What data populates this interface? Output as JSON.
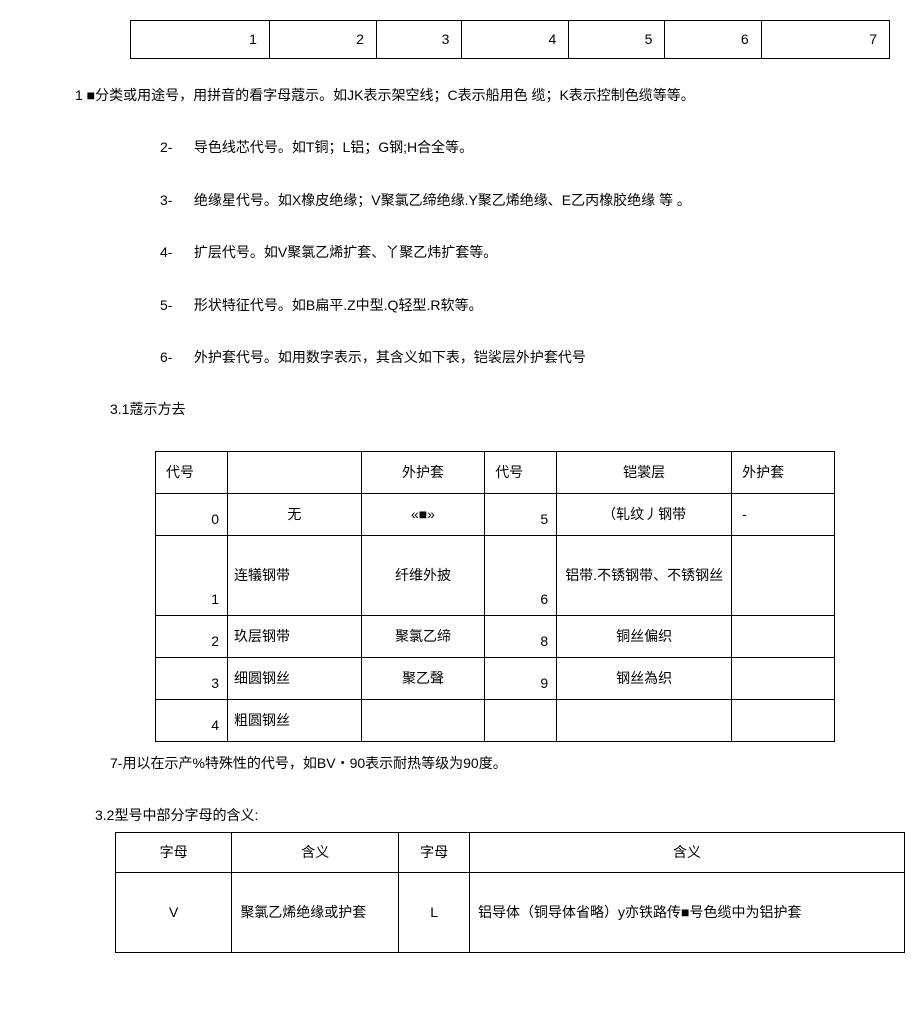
{
  "table1": {
    "cells": [
      "1",
      "2",
      "3",
      "4",
      "5",
      "6",
      "7"
    ]
  },
  "intro": "1 ■分类或用途号，用拼音的看字母蔻示。如JK表示架空线；C表示船用色  缆；K表示控制色缆等等。",
  "items": [
    {
      "n": "2-",
      "t": "导色线芯代号。如T铜；L铝；G钢;H合全等。"
    },
    {
      "n": "3-",
      "t": "绝缘星代号。如X橡皮绝缘；V聚氯乙缔绝缘.Y聚乙烯绝缘、E乙丙橡胶绝缘 等 。"
    },
    {
      "n": "4-",
      "t": "扩层代号。如V聚氯乙烯扩套、丫聚乙炜扩套等。"
    },
    {
      "n": "5-",
      "t": "形状特征代号。如B扁平.Z中型.Q轻型.R软等。"
    },
    {
      "n": "6-",
      "t": "外护套代号。如用数字表示，其含义如下表，铠裟层外护套代号"
    }
  ],
  "s31": "3.1蔻示方去",
  "table2": {
    "headers": [
      "代号",
      "",
      "外护套",
      "代号",
      "铠裳层",
      "外护套"
    ],
    "rows": [
      {
        "c1": "0",
        "c2": "无",
        "c3": "«■»",
        "c4": "5",
        "c5": "（轧纹丿钢带",
        "c6": "-",
        "tall": false
      },
      {
        "c1": "1",
        "c2": "连犠钢带",
        "c3": "纤维外披",
        "c4": "6",
        "c5": "铝带.不锈钢带、不锈钢丝",
        "c6": "",
        "tall": true
      },
      {
        "c1": "2",
        "c2": "玖层钢带",
        "c3": "聚氯乙缔",
        "c4": "8",
        "c5": "铜丝偏织",
        "c6": "",
        "tall": false
      },
      {
        "c1": "3",
        "c2": "细圆钢丝",
        "c3": "聚乙聲",
        "c4": "9",
        "c5": "钢丝為织",
        "c6": "",
        "tall": false
      },
      {
        "c1": "4",
        "c2": "粗圆钢丝",
        "c3": "",
        "c4": "",
        "c5": "",
        "c6": "",
        "tall": false
      }
    ]
  },
  "item7": "7-用以在示产%特殊性的代号，如BV・90表示耐热等级为90度。",
  "s32": "3.2型号中部分字母的含义:",
  "table3": {
    "headers": [
      "字母",
      "含义",
      "字母",
      "含义"
    ],
    "rows": [
      {
        "c1": "V",
        "c2": "聚氯乙烯绝缘或护套",
        "c3": "L",
        "c4": "铝导体（铜导体省略）y亦铁路传■号色缆中为铝护套"
      }
    ]
  }
}
